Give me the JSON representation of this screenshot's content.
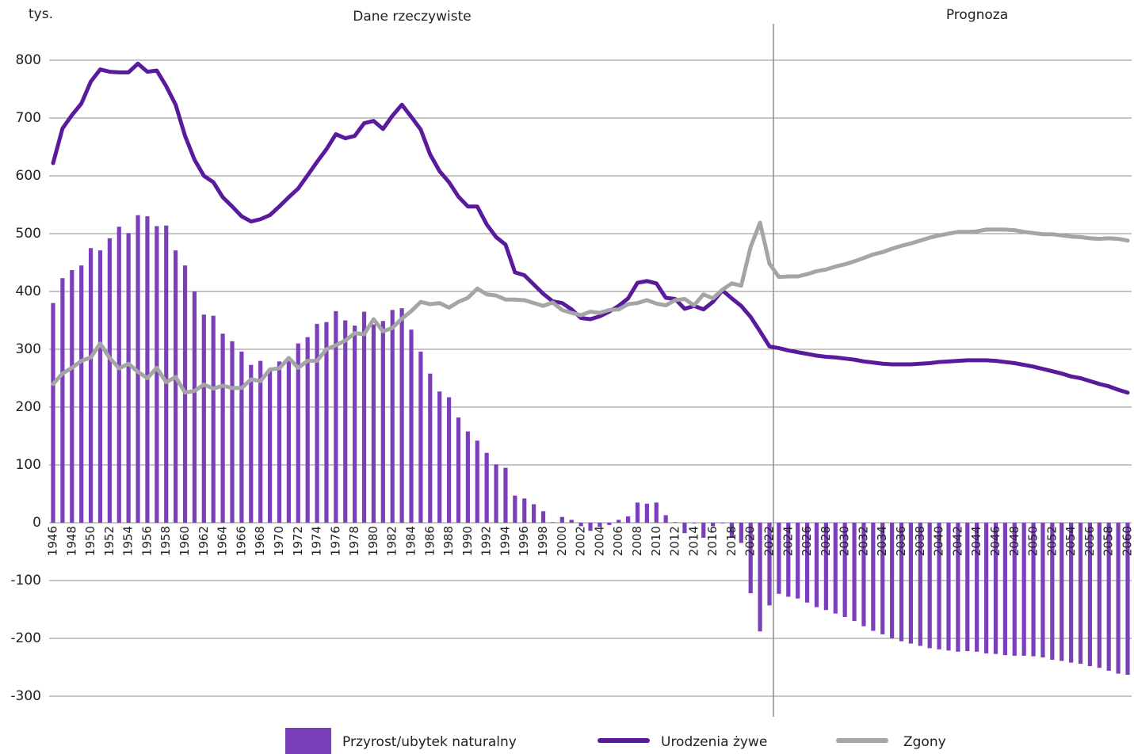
{
  "chart_data": {
    "type": "combo",
    "unit_label": "tys.",
    "annotations": [
      "Dane rzeczywiste",
      "Prognoza"
    ],
    "categories": [
      "1946",
      null,
      "1948",
      null,
      "1950",
      null,
      "1952",
      null,
      "1954",
      null,
      "1956",
      null,
      "1958",
      null,
      "1960",
      null,
      "1962",
      null,
      "1964",
      null,
      "1966",
      null,
      "1968",
      null,
      "1970",
      null,
      "1972",
      null,
      "1974",
      null,
      "1976",
      null,
      "1978",
      null,
      "1980",
      null,
      "1982",
      null,
      "1984",
      null,
      "1986",
      null,
      "1988",
      null,
      "1990",
      null,
      "1992",
      null,
      "1994",
      null,
      "1996",
      null,
      "1998",
      null,
      "2000",
      null,
      "2002",
      null,
      "2004",
      null,
      "2006",
      null,
      "2008",
      null,
      "2010",
      null,
      "2012",
      null,
      "2014",
      null,
      "2016",
      null,
      "2018",
      null,
      "2020",
      null,
      "2022",
      null,
      "2024",
      null,
      "2026",
      null,
      "2028",
      null,
      "2030",
      null,
      "2032",
      null,
      "2034",
      null,
      "2036",
      null,
      "2038",
      null,
      "2040",
      null,
      "2042",
      null,
      "2044",
      null,
      "2046",
      null,
      "2048",
      null,
      "2050",
      null,
      "2052",
      null,
      "2054",
      null,
      "2056",
      null,
      "2058",
      null,
      "2060"
    ],
    "series": [
      {
        "name": "Przyrost/ubytek naturalny",
        "type": "bar",
        "color": "#7b3fbc",
        "values": [
          380,
          423,
          437,
          445,
          475,
          471,
          492,
          512,
          501,
          532,
          530,
          513,
          514,
          471,
          445,
          400,
          360,
          358,
          327,
          314,
          296,
          273,
          280,
          265,
          279,
          281,
          310,
          321,
          344,
          347,
          366,
          350,
          341,
          365,
          343,
          349,
          368,
          371,
          334,
          296,
          258,
          227,
          217,
          182,
          158,
          142,
          121,
          101,
          95,
          47,
          42,
          32,
          20,
          1,
          10,
          5,
          -6,
          -14,
          -7,
          -4,
          5,
          11,
          35,
          33,
          35,
          13,
          1,
          -18,
          -1,
          -26,
          -6,
          -1,
          -26,
          -35,
          -122,
          -188,
          -143,
          -123,
          -128,
          -131,
          -138,
          -146,
          -151,
          -157,
          -163,
          -170,
          -179,
          -187,
          -193,
          -200,
          -205,
          -209,
          -213,
          -217,
          -219,
          -221,
          -223,
          -222,
          -223,
          -226,
          -227,
          -229,
          -230,
          -230,
          -231,
          -233,
          -237,
          -239,
          -242,
          -244,
          -248,
          -251,
          -256,
          -261,
          -263
        ]
      },
      {
        "name": "Urodzenia żywe",
        "type": "line",
        "color": "#5a1a9c",
        "values": [
          622,
          682,
          705,
          725,
          763,
          784,
          780,
          779,
          779,
          794,
          780,
          782,
          755,
          723,
          669,
          628,
          600,
          589,
          563,
          547,
          530,
          521,
          525,
          532,
          547,
          563,
          578,
          601,
          624,
          646,
          672,
          665,
          669,
          691,
          695,
          681,
          704,
          723,
          702,
          680,
          637,
          608,
          589,
          564,
          547,
          547,
          516,
          494,
          481,
          433,
          428,
          412,
          396,
          383,
          380,
          369,
          354,
          352,
          357,
          365,
          375,
          388,
          415,
          418,
          414,
          389,
          387,
          370,
          375,
          369,
          382,
          402,
          388,
          375,
          356,
          331,
          305,
          302,
          298,
          295,
          292,
          289,
          287,
          286,
          284,
          282,
          279,
          277,
          275,
          274,
          274,
          274,
          275,
          276,
          278,
          279,
          280,
          281,
          281,
          281,
          280,
          278,
          276,
          273,
          270,
          266,
          262,
          258,
          253,
          250,
          245,
          240,
          236,
          230,
          225
        ]
      },
      {
        "name": "Zgony",
        "type": "line",
        "color": "#a5a5a5",
        "values": [
          240,
          258,
          268,
          280,
          286,
          310,
          285,
          267,
          275,
          261,
          250,
          268,
          243,
          252,
          225,
          228,
          239,
          232,
          237,
          233,
          233,
          248,
          245,
          265,
          267,
          285,
          268,
          280,
          280,
          300,
          307,
          315,
          328,
          326,
          352,
          331,
          337,
          353,
          366,
          382,
          378,
          380,
          372,
          382,
          389,
          405,
          395,
          393,
          386,
          386,
          385,
          380,
          375,
          381,
          368,
          363,
          359,
          365,
          363,
          368,
          369,
          378,
          380,
          385,
          379,
          376,
          385,
          387,
          376,
          395,
          388,
          403,
          414,
          410,
          477,
          519,
          448,
          425,
          426,
          426,
          430,
          435,
          438,
          443,
          447,
          452,
          458,
          464,
          468,
          474,
          479,
          483,
          488,
          493,
          497,
          500,
          503,
          503,
          504,
          507,
          507,
          507,
          506,
          503,
          501,
          499,
          499,
          497,
          495,
          494,
          492,
          491,
          492,
          491,
          488
        ]
      }
    ],
    "ylim": [
      -300,
      800
    ],
    "yticks": [
      -300,
      -200,
      -100,
      0,
      100,
      200,
      300,
      400,
      500,
      600,
      700,
      800
    ],
    "grid": true,
    "legend": "bottom"
  }
}
